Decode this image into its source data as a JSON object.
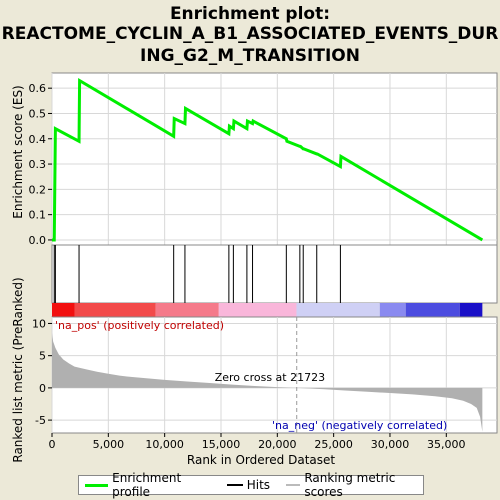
{
  "title_lines": [
    "Enrichment plot:",
    "REACTOME_CYCLIN_A_B1_ASSOCIATED_EVENTS_DUR",
    "ING_G2_M_TRANSITION"
  ],
  "chart_data": {
    "type": "line",
    "top_panel": {
      "ylabel": "Enrichment score (ES)",
      "ylim": [
        -0.02,
        0.66
      ],
      "yticks": [
        0.0,
        0.1,
        0.2,
        0.3,
        0.4,
        0.5,
        0.6
      ],
      "ytick_labels": [
        "0.0",
        "0.1",
        "0.2",
        "0.3",
        "0.4",
        "0.5",
        "0.6"
      ],
      "series": [
        {
          "name": "Enrichment profile",
          "color": "#00ee00",
          "x": [
            0,
            200,
            300,
            2400,
            2450,
            10800,
            10850,
            11800,
            11850,
            15700,
            15750,
            16100,
            16150,
            17300,
            17350,
            17800,
            17850,
            20800,
            20850,
            22000,
            22050,
            22300,
            22350,
            23500,
            23550,
            25600,
            25650,
            38200
          ],
          "y": [
            0.0,
            0.0,
            0.44,
            0.39,
            0.63,
            0.41,
            0.48,
            0.46,
            0.52,
            0.42,
            0.45,
            0.44,
            0.47,
            0.44,
            0.47,
            0.46,
            0.47,
            0.4,
            0.39,
            0.37,
            0.37,
            0.36,
            0.36,
            0.34,
            0.34,
            0.29,
            0.33,
            0.0
          ]
        }
      ]
    },
    "hits": [
      200,
      300,
      2400,
      10800,
      11800,
      15700,
      16100,
      17300,
      17800,
      20800,
      22000,
      22300,
      23500,
      25600
    ],
    "bottom_panel": {
      "ylabel": "Ranked list metric (PreRanked)",
      "ylim": [
        -7,
        11
      ],
      "yticks": [
        -5,
        0,
        5,
        10
      ],
      "ytick_labels": [
        "-5",
        "0",
        "5",
        "10"
      ],
      "metric": {
        "name": "Ranking metric scores",
        "x": [
          0,
          100,
          300,
          600,
          1000,
          1500,
          2000,
          3000,
          4000,
          5000,
          6000,
          7000,
          8000,
          9000,
          10000,
          12000,
          14000,
          16000,
          18000,
          20000,
          21723,
          24000,
          26000,
          28000,
          30000,
          32000,
          34000,
          35500,
          36500,
          37200,
          37700,
          38000,
          38200
        ],
        "y": [
          8.5,
          7.2,
          6.2,
          5.2,
          4.4,
          3.8,
          3.3,
          2.9,
          2.5,
          2.2,
          1.9,
          1.7,
          1.55,
          1.4,
          1.25,
          1.0,
          0.75,
          0.5,
          0.3,
          0.12,
          0.0,
          -0.2,
          -0.4,
          -0.6,
          -0.8,
          -1.0,
          -1.3,
          -1.6,
          -2.0,
          -2.5,
          -3.1,
          -4.5,
          -6.8
        ]
      },
      "zero_cross_label": "Zero cross at 21723",
      "zero_cross": 21723,
      "pos_label": "'na_pos' (positively correlated)",
      "neg_label": "'na_neg' (negatively correlated)"
    },
    "xlabel": "Rank in Ordered Dataset",
    "xlim": [
      0,
      39500
    ],
    "xticks": [
      0,
      5000,
      10000,
      15000,
      20000,
      25000,
      30000,
      35000
    ],
    "xtick_labels": [
      "0",
      "5,000",
      "10,000",
      "15,000",
      "20,000",
      "25,000",
      "30,000",
      "35,000"
    ],
    "heatmap_bar": [
      {
        "start": 0,
        "end": 2000,
        "color": "#f21010"
      },
      {
        "start": 2000,
        "end": 9200,
        "color": "#f24a4a"
      },
      {
        "start": 9200,
        "end": 14800,
        "color": "#f57a8a"
      },
      {
        "start": 14800,
        "end": 21700,
        "color": "#f9b6da"
      },
      {
        "start": 21700,
        "end": 29100,
        "color": "#cfd0f5"
      },
      {
        "start": 29100,
        "end": 31400,
        "color": "#8a8af0"
      },
      {
        "start": 31400,
        "end": 36200,
        "color": "#4c4ce0"
      },
      {
        "start": 36200,
        "end": 38200,
        "color": "#1a10c8"
      }
    ]
  },
  "legend": {
    "items": [
      {
        "label": "Enrichment profile",
        "color": "#00ee00"
      },
      {
        "label": "Hits",
        "color": "#000000"
      },
      {
        "label": "Ranking metric scores",
        "color": "#bbbbbb"
      }
    ]
  }
}
